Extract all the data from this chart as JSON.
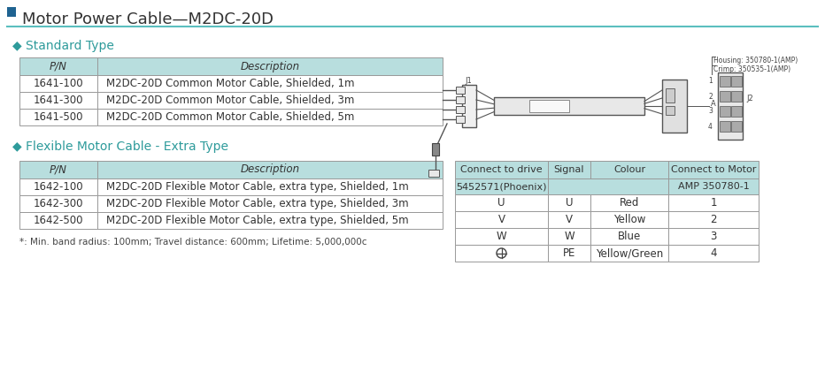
{
  "title": "Motor Power Cable—M2DC-20D",
  "title_color": "#333333",
  "title_square_color": "#1f6391",
  "header_line_color": "#5bbfbf",
  "section1_title": "◆ Standard Type",
  "section2_title": "◆ Flexible Motor Cable - Extra Type",
  "section_color": "#2e9b9b",
  "table_header_bg": "#b8dede",
  "table_row_bg": "#ffffff",
  "table_border_color": "#999999",
  "std_table_rows": [
    [
      "1641-100",
      "M2DC-20D Common Motor Cable, Shielded, 1m"
    ],
    [
      "1641-300",
      "M2DC-20D Common Motor Cable, Shielded, 3m"
    ],
    [
      "1641-500",
      "M2DC-20D Common Motor Cable, Shielded, 5m"
    ]
  ],
  "flex_table_rows": [
    [
      "1642-100",
      "M2DC-20D Flexible Motor Cable, extra type, Shielded, 1m"
    ],
    [
      "1642-300",
      "M2DC-20D Flexible Motor Cable, extra type, Shielded, 3m"
    ],
    [
      "1642-500",
      "M2DC-20D Flexible Motor Cable, extra type, Shielded, 5m"
    ]
  ],
  "footnote": "*: Min. band radius: 100mm; Travel distance: 600mm; Lifetime: 5,000,000c",
  "signal_table_col1_header": "Connect to drive",
  "signal_table_col1_sub": "5452571(Phoenix)",
  "signal_table_col2_header": "Signal",
  "signal_table_col3_header": "Colour",
  "signal_table_col4_header": "Connect to Motor",
  "signal_table_col4_sub": "AMP 350780-1",
  "signal_table_rows": [
    [
      "U",
      "U",
      "Red",
      "1"
    ],
    [
      "V",
      "V",
      "Yellow",
      "2"
    ],
    [
      "W",
      "W",
      "Blue",
      "3"
    ],
    [
      "⊕",
      "PE",
      "Yellow/Green",
      "4"
    ]
  ],
  "diagram_annotations": {
    "housing": "Housing: 350780-1(AMP)",
    "crimp": "Crimp: 350535-1(AMP)",
    "j1": "J1",
    "j2": "J2",
    "a_label": "A"
  },
  "bg_color": "#ffffff",
  "font_color": "#333333"
}
